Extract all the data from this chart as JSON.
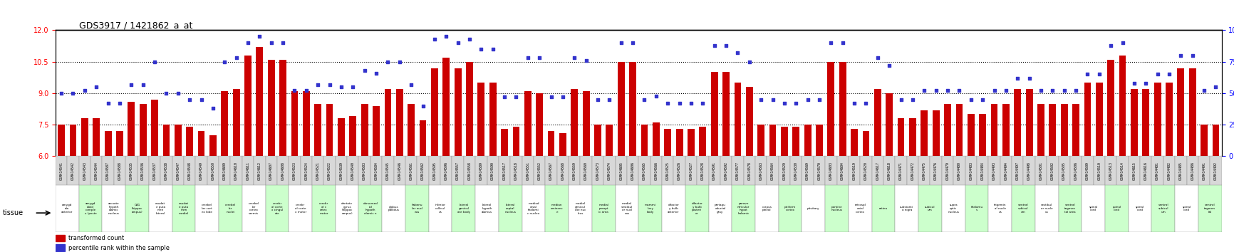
{
  "title": "GDS3917 / 1421862_a_at",
  "legend_bar": "transformed count",
  "legend_dot": "percentile rank within the sample",
  "ylim_left": [
    6,
    12
  ],
  "ylim_right": [
    0,
    100
  ],
  "yticks_left": [
    6,
    7.5,
    9,
    10.5,
    12
  ],
  "yticks_right": [
    0,
    25,
    50,
    75,
    100
  ],
  "bar_color": "#CC0000",
  "dot_color": "#3333CC",
  "bg_color": "#FFFFFF",
  "samples": [
    "GSM414541",
    "GSM414542",
    "GSM414543",
    "GSM414544",
    "GSM414587",
    "GSM414588",
    "GSM414535",
    "GSM414536",
    "GSM414537",
    "GSM414538",
    "GSM414547",
    "GSM414548",
    "GSM414549",
    "GSM414550",
    "GSM414609",
    "GSM414610",
    "GSM414611",
    "GSM414612",
    "GSM414607",
    "GSM414608",
    "GSM414523",
    "GSM414524",
    "GSM414521",
    "GSM414522",
    "GSM414539",
    "GSM414540",
    "GSM414583",
    "GSM414584",
    "GSM414545",
    "GSM414546",
    "GSM414561",
    "GSM414562",
    "GSM414595",
    "GSM414596",
    "GSM414557",
    "GSM414558",
    "GSM414589",
    "GSM414590",
    "GSM414517",
    "GSM414518",
    "GSM414551",
    "GSM414552",
    "GSM414567",
    "GSM414568",
    "GSM414559",
    "GSM414560",
    "GSM414573",
    "GSM414574",
    "GSM414605",
    "GSM414606",
    "GSM414565",
    "GSM414566",
    "GSM414525",
    "GSM414526",
    "GSM414527",
    "GSM414528",
    "GSM414591",
    "GSM414592",
    "GSM414577",
    "GSM414578",
    "GSM414563",
    "GSM414564",
    "GSM414529",
    "GSM414530",
    "GSM414569",
    "GSM414570",
    "GSM414603",
    "GSM414604",
    "GSM414519",
    "GSM414520",
    "GSM414617",
    "GSM414618",
    "GSM414471",
    "GSM414472",
    "GSM414475",
    "GSM414476",
    "GSM414479",
    "GSM414480",
    "GSM414483",
    "GSM414484",
    "GSM414493",
    "GSM414494",
    "GSM414497",
    "GSM414498",
    "GSM414501",
    "GSM414502",
    "GSM414505",
    "GSM414506",
    "GSM414509",
    "GSM414510",
    "GSM414513",
    "GSM414514",
    "GSM414615",
    "GSM414616",
    "GSM414481",
    "GSM414482",
    "GSM414485",
    "GSM414486",
    "GSM414491",
    "GSM414492"
  ],
  "tissues": [
    "amygd\nala\nanterior",
    "amygd\naloid\ncomple\nx (poste",
    "arcuate\nhypoth\nalamic\nnucleus",
    "CA1\n(hippoc\nampus)",
    "caudat\ne puta\nmen\nlateral",
    "caudat\ne puta\nmen\nmedial",
    "cerebel\nlar cort\nex lobe",
    "cerebel\nlar\nnuclei",
    "cerebel\nlar\ncortex\nvermis",
    "cerebr\nal corte\nx cingul\nate",
    "cerebr\nal corte\nx motor",
    "cerebr\nal c\nortex\nmotor",
    "dentate\ngyrus\n(hippoc\nampus)",
    "dorsomed\nial\nhypoth\nalamic n",
    "globus\npallidus",
    "habenu\nlar nucl\neus",
    "inferior\ncollicul\nus",
    "lateral\ngenicul\nate body",
    "lateral\nhypoth\nalamus",
    "lateral\nseptal\nnucleus",
    "mediod\norsal\nthalami\nc nucleu",
    "median\neminenc\ne",
    "medial\ngenicul\nate nuc\nleus",
    "medial\npreopt\nic area",
    "medial\nvestibul\nar nucl\neus",
    "mammi\nllary\nbody",
    "olfactor\ny bulb\nanterior",
    "olfactor\ny bulb\nposteri\nor",
    "periaqu\neductal\ngray",
    "parave\nntricular\nhypot\nhalamic",
    "corpus\npineal",
    "piriform\ncortex",
    "pituitary",
    "pontine\nnucleus",
    "retrospl\nenial\ncortex",
    "retina",
    "substanti\na nigra",
    "subicul\num",
    "supra\noptic\nnucleus",
    "thalamu\ns",
    "trigemin\nal nucle\nus",
    "ventral\nsubicul\num",
    "vestibul\nar nucle\nus",
    "ventral\ntegmen\ntal area",
    "spinal\ncord",
    "spinal\ncord",
    "spinal\ncord",
    "ventral\nsubicul\num",
    "spinal\ncord",
    "ventral\ntegmen\ntal"
  ],
  "tissue_groups": [
    0,
    0,
    1,
    1,
    2,
    2,
    3,
    3,
    4,
    4,
    5,
    5,
    6,
    6,
    7,
    7,
    8,
    8,
    9,
    9,
    10,
    10,
    11,
    11,
    12,
    12,
    13,
    13,
    14,
    14,
    15,
    15,
    16,
    16,
    17,
    17,
    18,
    18,
    19,
    19,
    20,
    20,
    21,
    21,
    22,
    22,
    23,
    23,
    24,
    24,
    25,
    25,
    26,
    26,
    27,
    27,
    28,
    28,
    29,
    29,
    30,
    30,
    31,
    31,
    32,
    32,
    33,
    33,
    34,
    34,
    35,
    35,
    36,
    36,
    37,
    37,
    38,
    38,
    39,
    39,
    40,
    40,
    41,
    41,
    42,
    42,
    43,
    43,
    44,
    44,
    45,
    45,
    46,
    46,
    47,
    47,
    48,
    48,
    49,
    49
  ],
  "bar_values": [
    7.5,
    7.5,
    7.8,
    7.8,
    7.2,
    7.2,
    8.6,
    8.5,
    8.7,
    7.5,
    7.5,
    7.4,
    7.2,
    7.0,
    9.1,
    9.2,
    10.8,
    11.2,
    10.6,
    10.6,
    9.1,
    9.1,
    8.5,
    8.5,
    7.8,
    7.9,
    8.5,
    8.4,
    9.2,
    9.2,
    8.5,
    7.7,
    10.2,
    10.7,
    10.2,
    10.5,
    9.5,
    9.5,
    7.3,
    7.4,
    9.1,
    9.0,
    7.2,
    7.1,
    9.2,
    9.1,
    7.5,
    7.5,
    10.5,
    10.5,
    7.5,
    7.6,
    7.3,
    7.3,
    7.3,
    7.4,
    10.0,
    10.0,
    9.5,
    9.3,
    7.5,
    7.5,
    7.4,
    7.4,
    7.5,
    7.5,
    10.5,
    10.5,
    7.3,
    7.2,
    9.2,
    9.0,
    7.8,
    7.8,
    8.2,
    8.2,
    8.5,
    8.5,
    8.0,
    8.0,
    8.5,
    8.5,
    9.2,
    9.2,
    8.5,
    8.5,
    8.5,
    8.5,
    9.5,
    9.5,
    10.6,
    10.8,
    9.2,
    9.2,
    9.5,
    9.5,
    10.2,
    10.2,
    7.5,
    7.5
  ],
  "dot_values": [
    50,
    50,
    52,
    55,
    42,
    42,
    57,
    57,
    75,
    50,
    50,
    45,
    45,
    38,
    75,
    78,
    90,
    95,
    90,
    90,
    52,
    52,
    57,
    57,
    55,
    55,
    68,
    66,
    75,
    75,
    57,
    40,
    93,
    95,
    90,
    93,
    85,
    85,
    47,
    47,
    78,
    78,
    47,
    47,
    78,
    76,
    45,
    45,
    90,
    90,
    45,
    48,
    42,
    42,
    42,
    42,
    88,
    88,
    82,
    75,
    45,
    45,
    42,
    42,
    45,
    45,
    90,
    90,
    42,
    42,
    78,
    72,
    45,
    45,
    52,
    52,
    52,
    52,
    45,
    45,
    52,
    52,
    62,
    62,
    52,
    52,
    52,
    52,
    65,
    65,
    88,
    90,
    58,
    58,
    65,
    65,
    80,
    80,
    52,
    55
  ]
}
